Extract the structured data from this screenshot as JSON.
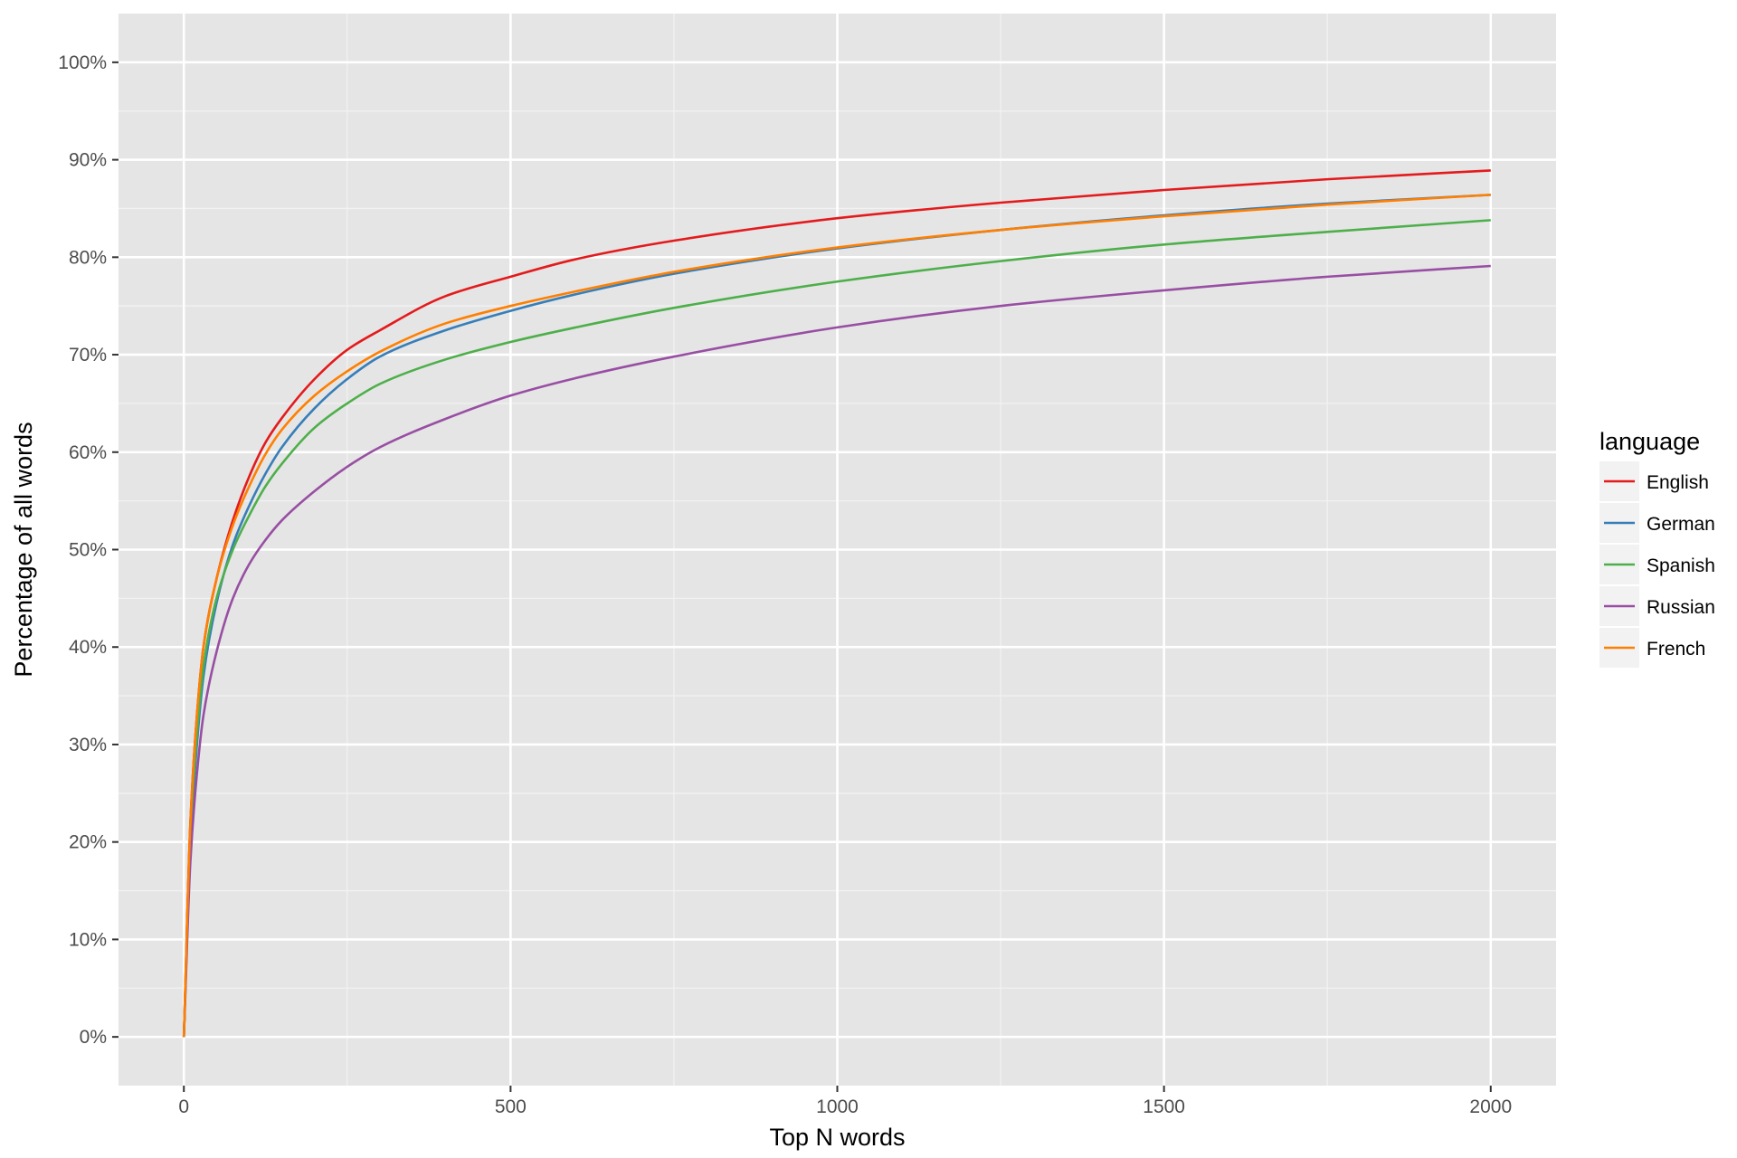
{
  "chart_data": {
    "type": "line",
    "xlabel": "Top N words",
    "ylabel": "Percentage of all words",
    "xlim": [
      -100,
      2100
    ],
    "ylim": [
      -5,
      105
    ],
    "x_ticks": [
      0,
      500,
      1000,
      1500,
      2000
    ],
    "x_tick_labels": [
      "0",
      "500",
      "1000",
      "1500",
      "2000"
    ],
    "y_ticks": [
      0,
      10,
      20,
      30,
      40,
      50,
      60,
      70,
      80,
      90,
      100
    ],
    "y_tick_labels": [
      "0%",
      "10%",
      "20%",
      "30%",
      "40%",
      "50%",
      "60%",
      "70%",
      "80%",
      "90%",
      "100%"
    ],
    "grid": true,
    "legend": {
      "title": "language",
      "position": "right"
    },
    "x": [
      0,
      10,
      20,
      30,
      50,
      75,
      100,
      125,
      150,
      200,
      250,
      300,
      400,
      500,
      600,
      750,
      1000,
      1250,
      1500,
      1750,
      2000
    ],
    "series": [
      {
        "name": "English",
        "color": "#e41a1c",
        "values": [
          0,
          22,
          33,
          40,
          47,
          53,
          57.5,
          61,
          63.5,
          67.5,
          70.5,
          72.5,
          76,
          78,
          79.8,
          81.7,
          84,
          85.6,
          86.9,
          88,
          88.9
        ]
      },
      {
        "name": "German",
        "color": "#377eb8",
        "values": [
          0,
          20,
          30,
          37,
          44.5,
          50.5,
          54.5,
          57.8,
          60.5,
          64.5,
          67.5,
          69.8,
          72.5,
          74.5,
          76.2,
          78.3,
          80.9,
          82.8,
          84.3,
          85.5,
          86.4
        ]
      },
      {
        "name": "Spanish",
        "color": "#4daf4a",
        "values": [
          0,
          21,
          31,
          38,
          45,
          50,
          53.5,
          56.5,
          58.8,
          62.5,
          65,
          67,
          69.5,
          71.3,
          72.8,
          74.8,
          77.5,
          79.6,
          81.3,
          82.6,
          83.8
        ]
      },
      {
        "name": "Russian",
        "color": "#984ea3",
        "values": [
          0,
          18,
          27,
          33,
          39.5,
          45,
          48.5,
          51,
          53,
          56,
          58.5,
          60.5,
          63.4,
          65.8,
          67.6,
          69.8,
          72.8,
          75,
          76.6,
          78,
          79.1
        ]
      },
      {
        "name": "French",
        "color": "#ff7f00",
        "values": [
          0,
          22,
          33,
          40,
          47,
          52.5,
          56.5,
          59.8,
          62.3,
          65.8,
          68.3,
          70.3,
          73.2,
          75,
          76.5,
          78.5,
          81,
          82.8,
          84.2,
          85.4,
          86.4
        ]
      }
    ]
  }
}
